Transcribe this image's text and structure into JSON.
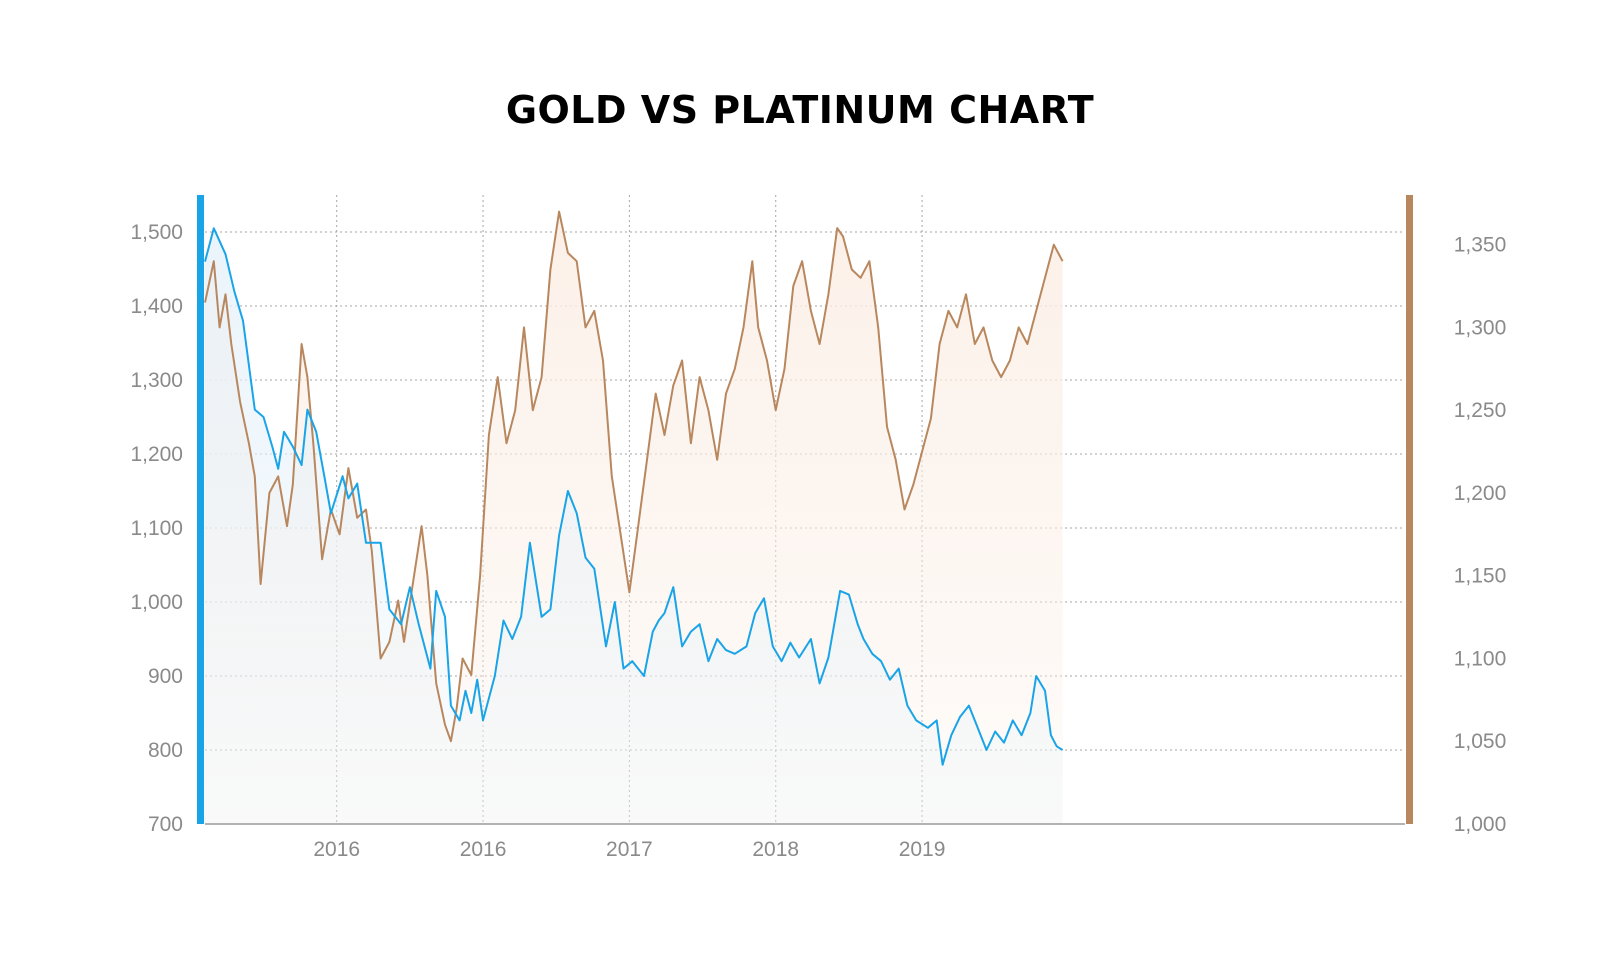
{
  "title": "GOLD VS PLATINUM CHART",
  "colors": {
    "platinum_line": "#1aa4e8",
    "platinum_fill": "#e7f2fa",
    "gold_line": "#b9875e",
    "gold_fill": "#fbefe6",
    "grid": "#a6a6a6",
    "tick_text": "#8a8a8a"
  },
  "chart_data": {
    "type": "line",
    "title": "GOLD VS PLATINUM CHART",
    "x_range": [
      2015.45,
      2019.55
    ],
    "x_ticks": [
      {
        "x": 2015.9,
        "label": "2016"
      },
      {
        "x": 2016.4,
        "label": "2016"
      },
      {
        "x": 2016.9,
        "label": "2017"
      },
      {
        "x": 2017.4,
        "label": "2018"
      },
      {
        "x": 2017.9,
        "label": "2019"
      }
    ],
    "grid": true,
    "left_axis": {
      "series": "platinum",
      "ylim": [
        700,
        1550
      ],
      "ticks": [
        "700",
        "800",
        "900",
        "1,000",
        "1,100",
        "1,200",
        "1,300",
        "1,400",
        "1,500"
      ]
    },
    "right_axis": {
      "series": "gold",
      "ylim": [
        1000,
        1380
      ],
      "ticks": [
        "1,000",
        "1,050",
        "1,100",
        "1,150",
        "1,200",
        "1,250",
        "1,300",
        "1,350"
      ]
    },
    "series": [
      {
        "key": "platinum",
        "axis": "left",
        "points": [
          [
            2015.45,
            1460
          ],
          [
            2015.48,
            1505
          ],
          [
            2015.52,
            1470
          ],
          [
            2015.55,
            1420
          ],
          [
            2015.58,
            1380
          ],
          [
            2015.62,
            1260
          ],
          [
            2015.65,
            1250
          ],
          [
            2015.68,
            1210
          ],
          [
            2015.7,
            1180
          ],
          [
            2015.72,
            1230
          ],
          [
            2015.75,
            1210
          ],
          [
            2015.78,
            1185
          ],
          [
            2015.8,
            1260
          ],
          [
            2015.83,
            1230
          ],
          [
            2015.86,
            1165
          ],
          [
            2015.88,
            1120
          ],
          [
            2015.92,
            1170
          ],
          [
            2015.94,
            1140
          ],
          [
            2015.97,
            1160
          ],
          [
            2016.0,
            1080
          ],
          [
            2016.05,
            1080
          ],
          [
            2016.08,
            990
          ],
          [
            2016.12,
            970
          ],
          [
            2016.15,
            1020
          ],
          [
            2016.18,
            970
          ],
          [
            2016.22,
            910
          ],
          [
            2016.24,
            1015
          ],
          [
            2016.27,
            980
          ],
          [
            2016.29,
            860
          ],
          [
            2016.32,
            840
          ],
          [
            2016.34,
            880
          ],
          [
            2016.36,
            850
          ],
          [
            2016.38,
            895
          ],
          [
            2016.4,
            840
          ],
          [
            2016.44,
            900
          ],
          [
            2016.47,
            975
          ],
          [
            2016.5,
            950
          ],
          [
            2016.53,
            980
          ],
          [
            2016.56,
            1080
          ],
          [
            2016.6,
            980
          ],
          [
            2016.63,
            990
          ],
          [
            2016.66,
            1090
          ],
          [
            2016.69,
            1150
          ],
          [
            2016.72,
            1120
          ],
          [
            2016.75,
            1060
          ],
          [
            2016.78,
            1045
          ],
          [
            2016.82,
            940
          ],
          [
            2016.85,
            1000
          ],
          [
            2016.88,
            910
          ],
          [
            2016.91,
            920
          ],
          [
            2016.95,
            900
          ],
          [
            2016.98,
            960
          ],
          [
            2017.0,
            975
          ],
          [
            2017.02,
            985
          ],
          [
            2017.05,
            1020
          ],
          [
            2017.08,
            940
          ],
          [
            2017.11,
            960
          ],
          [
            2017.14,
            970
          ],
          [
            2017.17,
            920
          ],
          [
            2017.2,
            950
          ],
          [
            2017.23,
            935
          ],
          [
            2017.26,
            930
          ],
          [
            2017.3,
            940
          ],
          [
            2017.33,
            985
          ],
          [
            2017.36,
            1005
          ],
          [
            2017.39,
            940
          ],
          [
            2017.42,
            920
          ],
          [
            2017.45,
            945
          ],
          [
            2017.48,
            925
          ],
          [
            2017.52,
            950
          ],
          [
            2017.55,
            890
          ],
          [
            2017.58,
            925
          ],
          [
            2017.62,
            1015
          ],
          [
            2017.65,
            1010
          ],
          [
            2017.68,
            970
          ],
          [
            2017.7,
            950
          ],
          [
            2017.73,
            930
          ],
          [
            2017.76,
            920
          ],
          [
            2017.79,
            895
          ],
          [
            2017.82,
            910
          ],
          [
            2017.85,
            860
          ],
          [
            2017.88,
            840
          ],
          [
            2017.92,
            830
          ],
          [
            2017.95,
            840
          ],
          [
            2017.97,
            780
          ],
          [
            2018.0,
            820
          ],
          [
            2018.03,
            845
          ],
          [
            2018.06,
            860
          ],
          [
            2018.09,
            830
          ],
          [
            2018.12,
            800
          ],
          [
            2018.15,
            825
          ],
          [
            2018.18,
            810
          ],
          [
            2018.21,
            840
          ],
          [
            2018.24,
            820
          ],
          [
            2018.27,
            850
          ],
          [
            2018.29,
            900
          ],
          [
            2018.32,
            880
          ],
          [
            2018.34,
            820
          ],
          [
            2018.36,
            805
          ],
          [
            2018.38,
            800
          ]
        ]
      },
      {
        "key": "gold",
        "axis": "right",
        "points": [
          [
            2015.45,
            1315
          ],
          [
            2015.48,
            1340
          ],
          [
            2015.5,
            1300
          ],
          [
            2015.52,
            1320
          ],
          [
            2015.54,
            1290
          ],
          [
            2015.57,
            1255
          ],
          [
            2015.6,
            1230
          ],
          [
            2015.62,
            1210
          ],
          [
            2015.64,
            1145
          ],
          [
            2015.67,
            1200
          ],
          [
            2015.7,
            1210
          ],
          [
            2015.73,
            1180
          ],
          [
            2015.75,
            1205
          ],
          [
            2015.78,
            1290
          ],
          [
            2015.8,
            1270
          ],
          [
            2015.82,
            1230
          ],
          [
            2015.85,
            1160
          ],
          [
            2015.88,
            1190
          ],
          [
            2015.91,
            1175
          ],
          [
            2015.94,
            1215
          ],
          [
            2015.97,
            1185
          ],
          [
            2016.0,
            1190
          ],
          [
            2016.02,
            1165
          ],
          [
            2016.05,
            1100
          ],
          [
            2016.08,
            1110
          ],
          [
            2016.11,
            1135
          ],
          [
            2016.13,
            1110
          ],
          [
            2016.16,
            1145
          ],
          [
            2016.19,
            1180
          ],
          [
            2016.21,
            1150
          ],
          [
            2016.24,
            1085
          ],
          [
            2016.27,
            1060
          ],
          [
            2016.29,
            1050
          ],
          [
            2016.31,
            1070
          ],
          [
            2016.33,
            1100
          ],
          [
            2016.36,
            1090
          ],
          [
            2016.39,
            1150
          ],
          [
            2016.42,
            1235
          ],
          [
            2016.45,
            1270
          ],
          [
            2016.48,
            1230
          ],
          [
            2016.51,
            1250
          ],
          [
            2016.54,
            1300
          ],
          [
            2016.57,
            1250
          ],
          [
            2016.6,
            1270
          ],
          [
            2016.63,
            1335
          ],
          [
            2016.66,
            1370
          ],
          [
            2016.69,
            1345
          ],
          [
            2016.72,
            1340
          ],
          [
            2016.75,
            1300
          ],
          [
            2016.78,
            1310
          ],
          [
            2016.81,
            1280
          ],
          [
            2016.84,
            1210
          ],
          [
            2016.87,
            1175
          ],
          [
            2016.9,
            1140
          ],
          [
            2016.93,
            1180
          ],
          [
            2016.96,
            1220
          ],
          [
            2016.99,
            1260
          ],
          [
            2017.02,
            1235
          ],
          [
            2017.05,
            1265
          ],
          [
            2017.08,
            1280
          ],
          [
            2017.11,
            1230
          ],
          [
            2017.14,
            1270
          ],
          [
            2017.17,
            1250
          ],
          [
            2017.2,
            1220
          ],
          [
            2017.23,
            1260
          ],
          [
            2017.26,
            1275
          ],
          [
            2017.29,
            1300
          ],
          [
            2017.32,
            1340
          ],
          [
            2017.34,
            1300
          ],
          [
            2017.37,
            1280
          ],
          [
            2017.4,
            1250
          ],
          [
            2017.43,
            1275
          ],
          [
            2017.46,
            1325
          ],
          [
            2017.49,
            1340
          ],
          [
            2017.52,
            1310
          ],
          [
            2017.55,
            1290
          ],
          [
            2017.58,
            1320
          ],
          [
            2017.61,
            1360
          ],
          [
            2017.63,
            1355
          ],
          [
            2017.66,
            1335
          ],
          [
            2017.69,
            1330
          ],
          [
            2017.72,
            1340
          ],
          [
            2017.75,
            1300
          ],
          [
            2017.78,
            1240
          ],
          [
            2017.81,
            1220
          ],
          [
            2017.84,
            1190
          ],
          [
            2017.87,
            1205
          ],
          [
            2017.9,
            1225
          ],
          [
            2017.93,
            1245
          ],
          [
            2017.96,
            1290
          ],
          [
            2017.99,
            1310
          ],
          [
            2018.02,
            1300
          ],
          [
            2018.05,
            1320
          ],
          [
            2018.08,
            1290
          ],
          [
            2018.11,
            1300
          ],
          [
            2018.14,
            1280
          ],
          [
            2018.17,
            1270
          ],
          [
            2018.2,
            1280
          ],
          [
            2018.23,
            1300
          ],
          [
            2018.26,
            1290
          ],
          [
            2018.29,
            1310
          ],
          [
            2018.32,
            1330
          ],
          [
            2018.35,
            1350
          ],
          [
            2018.38,
            1340
          ]
        ]
      }
    ]
  }
}
